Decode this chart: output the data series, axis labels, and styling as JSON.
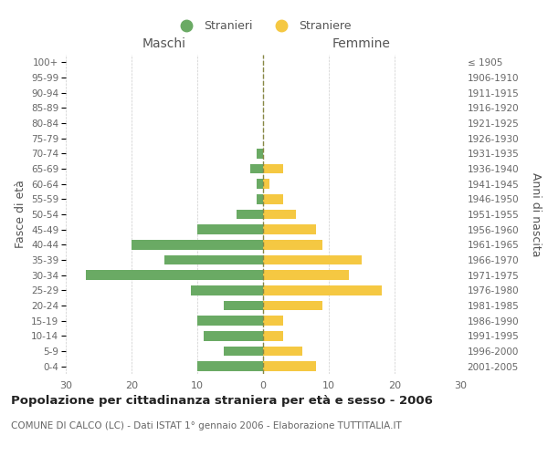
{
  "age_groups": [
    "100+",
    "95-99",
    "90-94",
    "85-89",
    "80-84",
    "75-79",
    "70-74",
    "65-69",
    "60-64",
    "55-59",
    "50-54",
    "45-49",
    "40-44",
    "35-39",
    "30-34",
    "25-29",
    "20-24",
    "15-19",
    "10-14",
    "5-9",
    "0-4"
  ],
  "birth_years": [
    "≤ 1905",
    "1906-1910",
    "1911-1915",
    "1916-1920",
    "1921-1925",
    "1926-1930",
    "1931-1935",
    "1936-1940",
    "1941-1945",
    "1946-1950",
    "1951-1955",
    "1956-1960",
    "1961-1965",
    "1966-1970",
    "1971-1975",
    "1976-1980",
    "1981-1985",
    "1986-1990",
    "1991-1995",
    "1996-2000",
    "2001-2005"
  ],
  "males": [
    0,
    0,
    0,
    0,
    0,
    0,
    1,
    2,
    1,
    1,
    4,
    10,
    20,
    15,
    27,
    11,
    6,
    10,
    9,
    6,
    10
  ],
  "females": [
    0,
    0,
    0,
    0,
    0,
    0,
    0,
    3,
    1,
    3,
    5,
    8,
    9,
    15,
    13,
    18,
    9,
    3,
    3,
    6,
    8
  ],
  "male_color": "#6aaa64",
  "female_color": "#f5c842",
  "title_main": "Popolazione per cittadinanza straniera per età e sesso - 2006",
  "subtitle": "COMUNE DI CALCO (LC) - Dati ISTAT 1° gennaio 2006 - Elaborazione TUTTITALIA.IT",
  "xlabel_left": "Maschi",
  "xlabel_right": "Femmine",
  "ylabel_left": "Fasce di età",
  "ylabel_right": "Anni di nascita",
  "legend_male": "Stranieri",
  "legend_female": "Straniere",
  "xlim": 30,
  "background_color": "#ffffff",
  "grid_color": "#cccccc"
}
